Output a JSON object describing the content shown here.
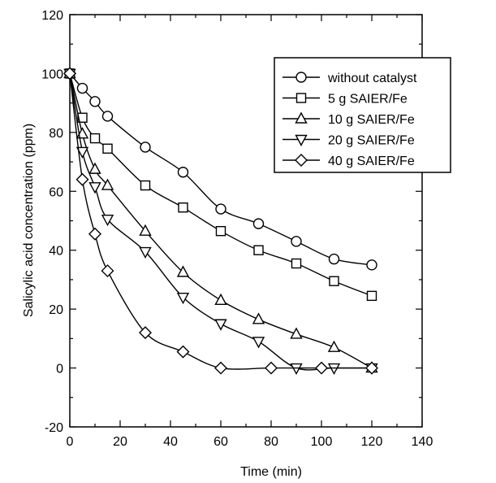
{
  "chart_data": {
    "type": "line",
    "xlabel": "Time (min)",
    "ylabel": "Salicylic acid concentration (ppm)",
    "xlim": [
      0,
      140
    ],
    "ylim": [
      -20,
      120
    ],
    "xticks": [
      0,
      20,
      40,
      60,
      80,
      100,
      120,
      140
    ],
    "yticks": [
      -20,
      0,
      20,
      40,
      60,
      80,
      100,
      120
    ],
    "grid": false,
    "legend_position": "top-right",
    "series": [
      {
        "name": "without catalyst",
        "marker": "circle",
        "x": [
          0,
          5,
          10,
          15,
          30,
          45,
          60,
          75,
          90,
          105,
          120
        ],
        "y": [
          100,
          95,
          90.5,
          85.5,
          75,
          66.5,
          54,
          49,
          43,
          37,
          35
        ]
      },
      {
        "name": "5 g SAIER/Fe",
        "marker": "square",
        "x": [
          0,
          5,
          10,
          15,
          30,
          45,
          60,
          75,
          90,
          105,
          120
        ],
        "y": [
          100,
          85,
          78,
          74.5,
          62,
          54.5,
          46.5,
          40,
          35.5,
          29.5,
          24.5
        ]
      },
      {
        "name": "10 g SAIER/Fe",
        "marker": "triangle-up",
        "x": [
          0,
          5,
          10,
          15,
          30,
          45,
          60,
          75,
          90,
          105,
          120
        ],
        "y": [
          100,
          79.5,
          67.5,
          62,
          46.5,
          32.5,
          23,
          16.5,
          11.5,
          7,
          0
        ]
      },
      {
        "name": "20 g SAIER/Fe",
        "marker": "triangle-down",
        "x": [
          0,
          5,
          10,
          15,
          30,
          45,
          60,
          75,
          90,
          105,
          120
        ],
        "y": [
          100,
          73.5,
          61.5,
          50.5,
          39.5,
          24,
          15,
          9,
          0,
          0,
          0
        ]
      },
      {
        "name": "40 g SAIER/Fe",
        "marker": "diamond",
        "x": [
          0,
          5,
          10,
          15,
          30,
          45,
          60,
          80,
          100,
          120
        ],
        "y": [
          100,
          64,
          45.5,
          33,
          12,
          5.5,
          0,
          0,
          0,
          0
        ]
      }
    ]
  }
}
